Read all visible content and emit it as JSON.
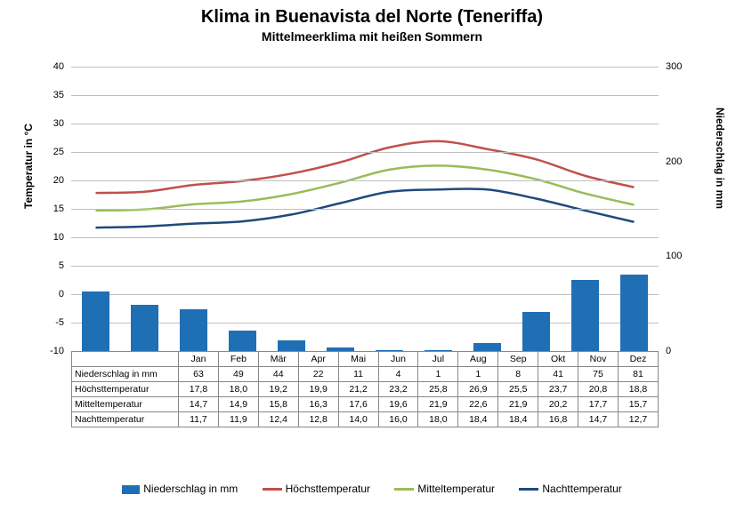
{
  "title": "Klima in Buenavista del Norte (Teneriffa)",
  "subtitle": "Mittelmeerklima mit heißen Sommern",
  "title_fontsize": 20,
  "subtitle_fontsize": 14,
  "y_left_title": "Temperatur in °C",
  "y_right_title": "Niederschlag in mm",
  "months": [
    "Jan",
    "Feb",
    "Mär",
    "Apr",
    "Mai",
    "Jun",
    "Jul",
    "Aug",
    "Sep",
    "Okt",
    "Nov",
    "Dez"
  ],
  "temp_min": -10,
  "temp_max": 40,
  "temp_step": 5,
  "precip_max": 300,
  "precip_step": 100,
  "precip": {
    "label": "Niederschlag in mm",
    "color": "#1f6fb5",
    "values": [
      63,
      49,
      44,
      22,
      11,
      4,
      1,
      1,
      8,
      41,
      75,
      81
    ]
  },
  "high": {
    "label": "Höchsttemperatur",
    "color": "#c0504d",
    "values": [
      17.8,
      18.0,
      19.2,
      19.9,
      21.2,
      23.2,
      25.8,
      26.9,
      25.5,
      23.7,
      20.8,
      18.8
    ]
  },
  "mid": {
    "label": "Mitteltemperatur",
    "color": "#9bbb59",
    "values": [
      14.7,
      14.9,
      15.8,
      16.3,
      17.6,
      19.6,
      21.9,
      22.6,
      21.9,
      20.2,
      17.7,
      15.7
    ]
  },
  "low": {
    "label": "Nachttemperatur",
    "color": "#1f497d",
    "values": [
      11.7,
      11.9,
      12.4,
      12.8,
      14.0,
      16.0,
      18.0,
      18.4,
      18.4,
      16.8,
      14.7,
      12.7
    ]
  },
  "background_color": "#ffffff",
  "grid_color": "#bfbfbf",
  "line_width": 2.5,
  "bar_width_ratio": 0.55,
  "chart_type": "combined-bar-line",
  "locale_decimal": ","
}
